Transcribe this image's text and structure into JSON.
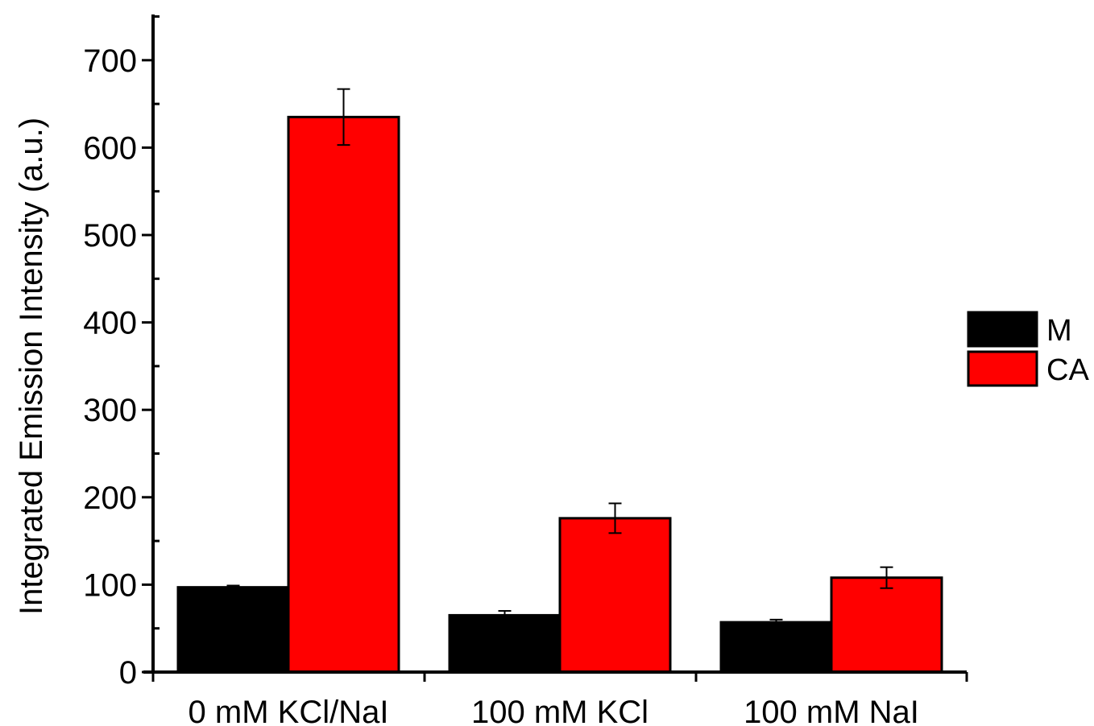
{
  "chart_data": {
    "type": "bar",
    "title": "",
    "xlabel": "",
    "ylabel": "Integrated Emission Intensity (a.u.)",
    "ylim": [
      0,
      750
    ],
    "yticks": [
      0,
      100,
      200,
      300,
      400,
      500,
      600,
      700
    ],
    "categories": [
      "0 mM KCl/NaI",
      "100 mM KCl",
      "100 mM NaI"
    ],
    "series": [
      {
        "name": "M",
        "color": "#000000",
        "values": [
          97,
          65,
          57
        ],
        "errors": [
          2,
          5,
          3
        ]
      },
      {
        "name": "CA",
        "color": "#ff0000",
        "values": [
          635,
          176,
          108
        ],
        "errors": [
          32,
          17,
          12
        ]
      }
    ],
    "legend_position": "right",
    "grid": false
  }
}
